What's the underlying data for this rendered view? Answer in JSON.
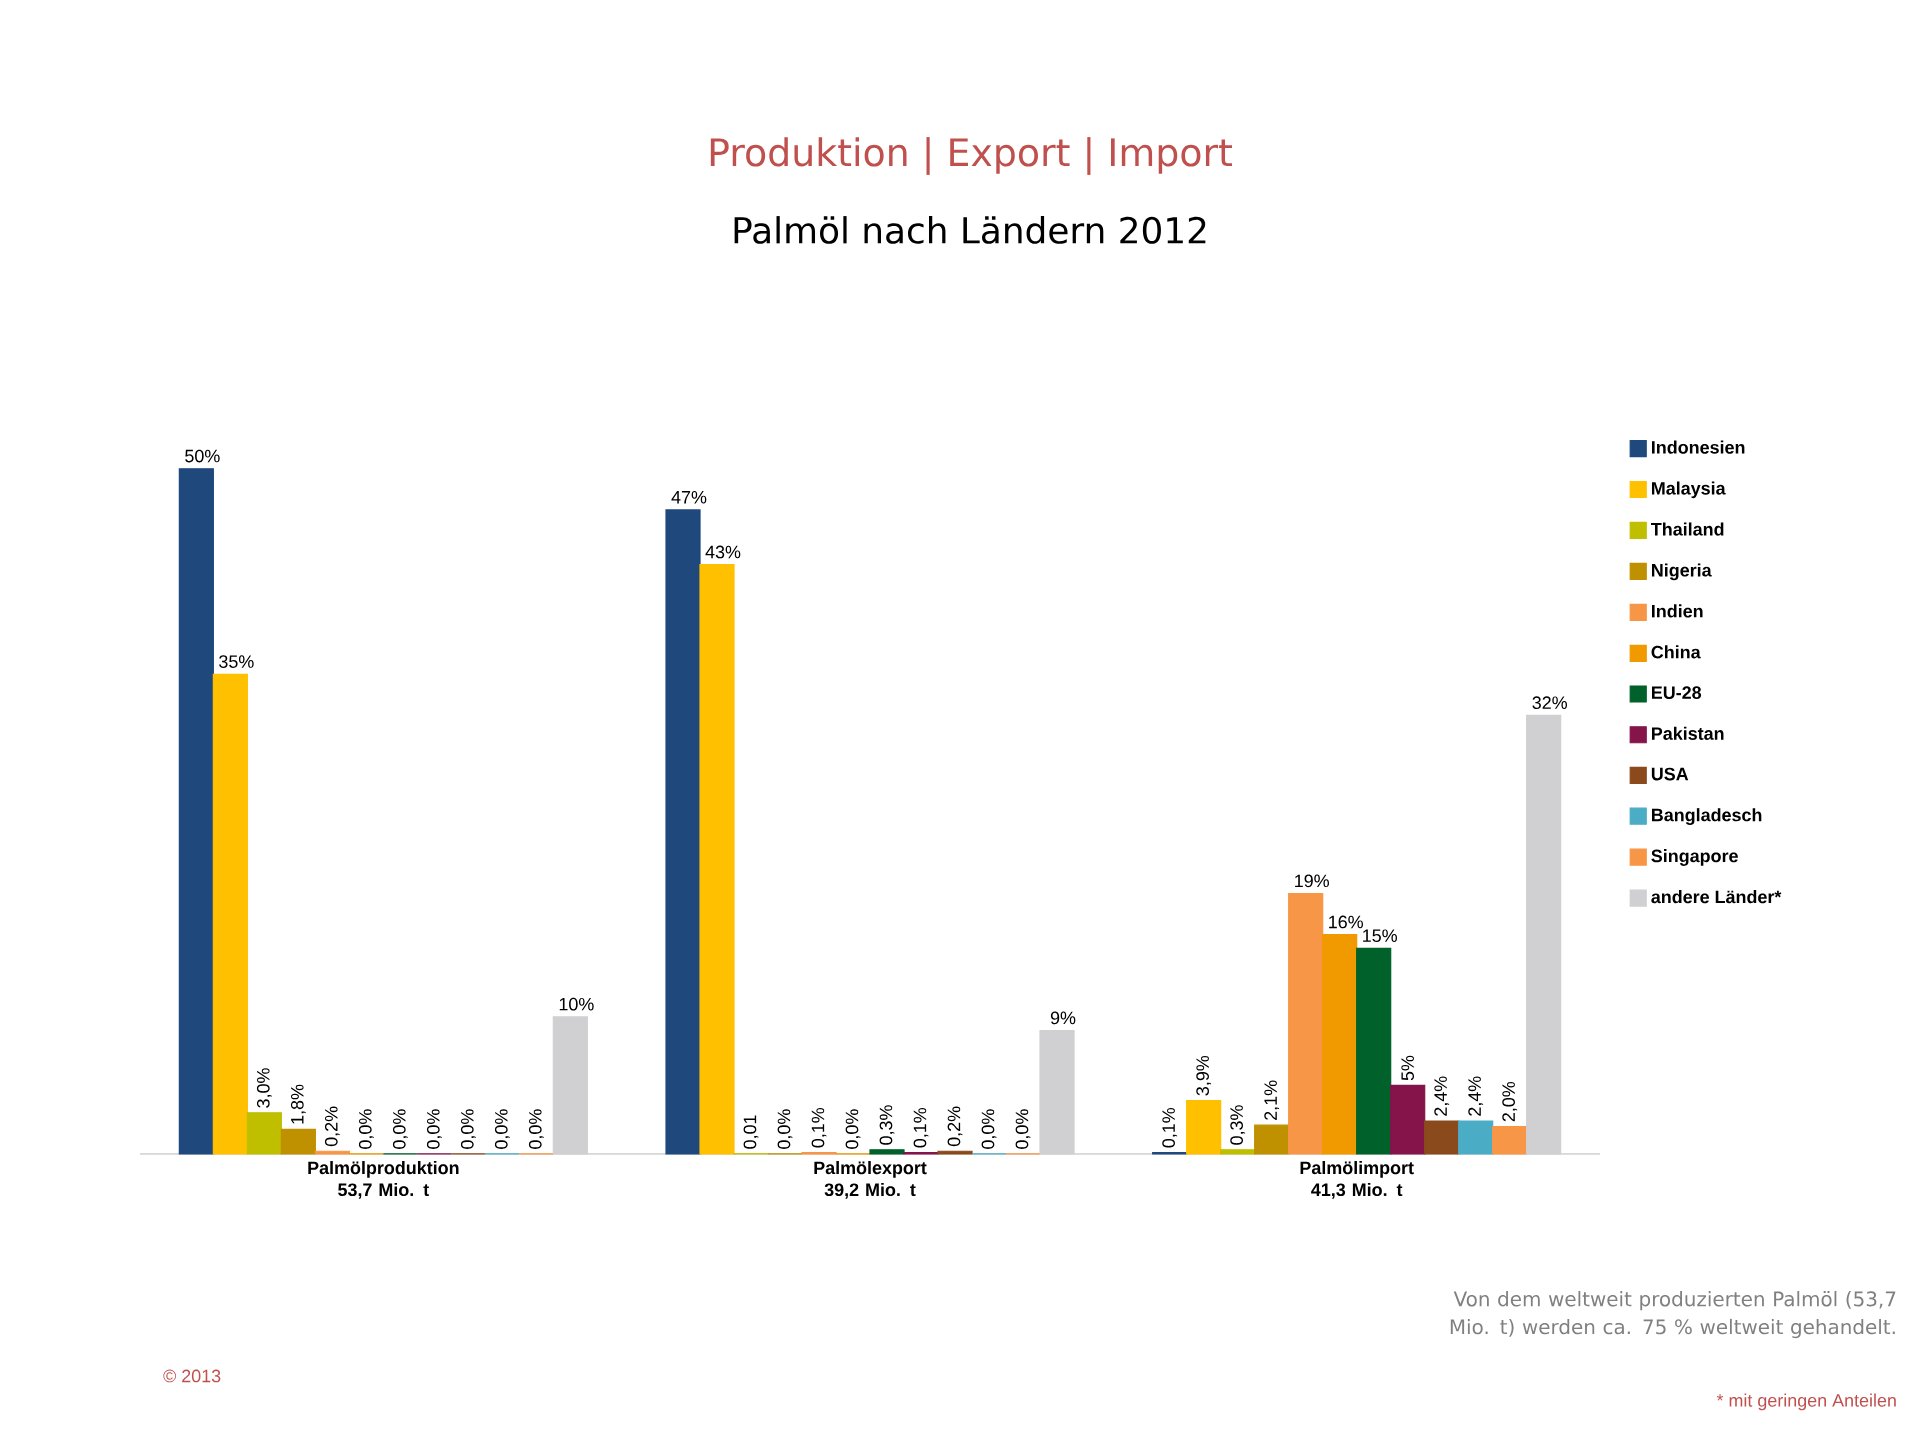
{
  "chart_data": {
    "type": "bar",
    "title": "Produktion | Export | Import",
    "subtitle": "Palmöl nach Ländern 2012",
    "categories": [
      "Palmölproduktion 53,7 Mio. t",
      "Palmölexport 39,2 Mio. t",
      "Palmölimport 41,3 Mio. t"
    ],
    "series": [
      {
        "name": "Indonesien",
        "color": "#1f497d",
        "values": [
          50,
          47,
          0.1
        ],
        "value_labels": [
          "50%",
          "47%",
          "0,1%"
        ]
      },
      {
        "name": "Malaysia",
        "color": "#ffc000",
        "values": [
          35,
          43,
          3.9
        ],
        "value_labels": [
          "35%",
          "43%",
          "3,9%"
        ]
      },
      {
        "name": "Thailand",
        "color": "#bfbf00",
        "values": [
          3.0,
          0.01,
          0.3
        ],
        "value_labels": [
          "3,0%",
          "0,01",
          "0,3%"
        ]
      },
      {
        "name": "Nigeria",
        "color": "#bf9000",
        "values": [
          1.8,
          0.0,
          2.1
        ],
        "value_labels": [
          "1,8%",
          "0,0%",
          "2,1%"
        ]
      },
      {
        "name": "Indien",
        "color": "#f79646",
        "values": [
          0.2,
          0.1,
          19
        ],
        "value_labels": [
          "0,2%",
          "0,1%",
          "19%"
        ]
      },
      {
        "name": "China",
        "color": "#f09a00",
        "values": [
          0.0,
          0.0,
          16
        ],
        "value_labels": [
          "0,0%",
          "0,0%",
          "16%"
        ]
      },
      {
        "name": "EU-28",
        "color": "#00612a",
        "values": [
          0.0,
          0.3,
          15
        ],
        "value_labels": [
          "0,0%",
          "0,3%",
          "15%"
        ]
      },
      {
        "name": "Pakistan",
        "color": "#84144a",
        "values": [
          0.0,
          0.1,
          5
        ],
        "value_labels": [
          "0,0%",
          "0,1%",
          "5%"
        ]
      },
      {
        "name": "USA",
        "color": "#8b4a1c",
        "values": [
          0.0,
          0.2,
          2.4
        ],
        "value_labels": [
          "0,0%",
          "0,2%",
          "2,4%"
        ]
      },
      {
        "name": "Bangladesch",
        "color": "#4bacc6",
        "values": [
          0.0,
          0.0,
          2.4
        ],
        "value_labels": [
          "0,0%",
          "0,0%",
          "2,4%"
        ]
      },
      {
        "name": "Singapore",
        "color": "#f79646",
        "values": [
          0.0,
          0.0,
          2.0
        ],
        "value_labels": [
          "0,0%",
          "0,0%",
          "2,0%"
        ]
      },
      {
        "name": "andere Länder*",
        "color": "#d0d0d2",
        "values": [
          10,
          9,
          32
        ],
        "value_labels": [
          "10%",
          "9%",
          "32%"
        ]
      }
    ],
    "legend": "right",
    "annotations": [
      "Von dem weltweit produzierten Palmöl (53,7 Mio. t) werden ca. 75 % weltweit gehandelt.",
      "* mit geringen Anteilen",
      "© 2013"
    ]
  }
}
